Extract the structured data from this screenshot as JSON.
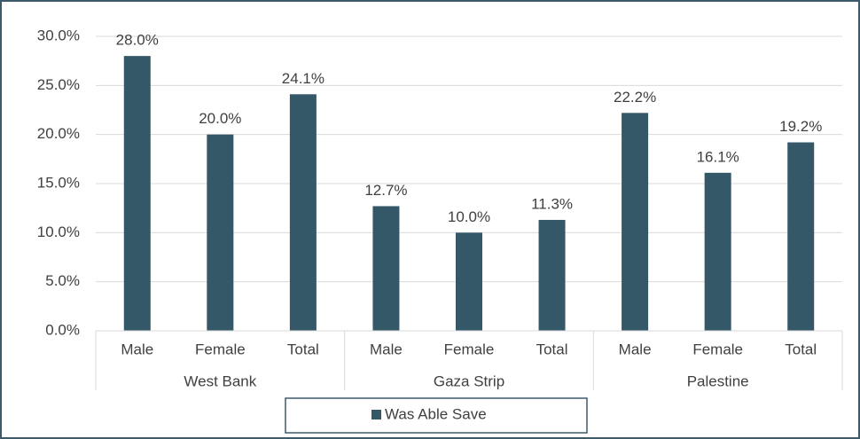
{
  "chart_data": {
    "type": "bar",
    "groups": [
      {
        "name": "West Bank",
        "categories": [
          "Male",
          "Female",
          "Total"
        ]
      },
      {
        "name": "Gaza Strip",
        "categories": [
          "Male",
          "Female",
          "Total"
        ]
      },
      {
        "name": "Palestine",
        "categories": [
          "Male",
          "Female",
          "Total"
        ]
      }
    ],
    "series": [
      {
        "name": "Was Able Save",
        "color": "#345868",
        "values": [
          28.0,
          20.0,
          24.1,
          12.7,
          10.0,
          11.3,
          22.2,
          16.1,
          19.2
        ],
        "value_labels": [
          "28.0%",
          "20.0%",
          "24.1%",
          "12.7%",
          "10.0%",
          "11.3%",
          "22.2%",
          "16.1%",
          "19.2%"
        ]
      }
    ],
    "ylim": [
      0,
      30
    ],
    "yticks": [
      {
        "value": 0,
        "label": "0.0%"
      },
      {
        "value": 5,
        "label": "5.0%"
      },
      {
        "value": 10,
        "label": "10.0%"
      },
      {
        "value": 15,
        "label": "15.0%"
      },
      {
        "value": 20,
        "label": "20.0%"
      },
      {
        "value": 25,
        "label": "25.0%"
      },
      {
        "value": 30,
        "label": "30.0%"
      }
    ],
    "grid": true,
    "legend": "bottom"
  }
}
